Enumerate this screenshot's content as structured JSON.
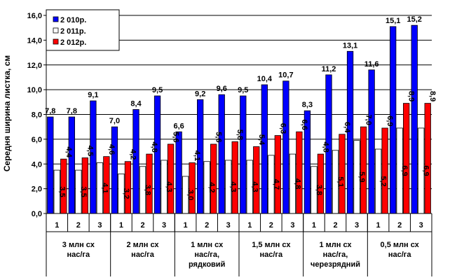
{
  "chart_data": {
    "type": "bar",
    "ylabel": "Середня ширина листка, см",
    "ylim": [
      0,
      16
    ],
    "yticks": [
      "0,0",
      "2,0",
      "4,0",
      "6,0",
      "8,0",
      "10,0",
      "12,0",
      "14,0",
      "16,0"
    ],
    "grid": true,
    "legend_position": "top-left",
    "groups": [
      {
        "label_lines": [
          "3 млн сх",
          "нас/га"
        ],
        "subcategories": [
          "1",
          "2",
          "3"
        ]
      },
      {
        "label_lines": [
          "2 млн сх",
          "нас/га"
        ],
        "subcategories": [
          "1",
          "2",
          "3"
        ]
      },
      {
        "label_lines": [
          "1 млн сх",
          "нас/га,",
          "рядковий"
        ],
        "subcategories": [
          "1",
          "2",
          "3"
        ]
      },
      {
        "label_lines": [
          "1,5 млн сх",
          "нас/га"
        ],
        "subcategories": [
          "1",
          "2",
          "3"
        ]
      },
      {
        "label_lines": [
          "1 млн сх",
          "нас/га,",
          "черезрядний"
        ],
        "subcategories": [
          "1",
          "2",
          "3"
        ]
      },
      {
        "label_lines": [
          "0,5 млн сх",
          "нас/га"
        ],
        "subcategories": [
          "1",
          "2",
          "3"
        ]
      }
    ],
    "series": [
      {
        "name": "2 010р.",
        "color": "#0000ff",
        "values": [
          7.8,
          7.8,
          9.1,
          7.0,
          8.4,
          9.5,
          6.6,
          9.2,
          9.6,
          9.5,
          10.4,
          10.7,
          8.3,
          11.2,
          13.1,
          11.6,
          15.1,
          15.2
        ],
        "labels": [
          "7,8",
          "7,8",
          "9,1",
          "7,0",
          "8,4",
          "9,5",
          "6,6",
          "9,2",
          "9,6",
          "9,5",
          "10,4",
          "10,7",
          "8,3",
          "11,2",
          "13,1",
          "11,6",
          "15,1",
          "15,2"
        ]
      },
      {
        "name": "2 011р.",
        "color": "#ffffff",
        "values": [
          3.5,
          3.5,
          4.1,
          3.2,
          3.8,
          4.3,
          3.0,
          4.2,
          4.3,
          4.3,
          4.7,
          4.8,
          3.8,
          5.1,
          5.9,
          5.2,
          6.9,
          6.9
        ],
        "labels": [
          "3,5",
          "3,5",
          "4,1",
          "3,2",
          "3,8",
          "4,3",
          "3,0",
          "4,2",
          "4,3",
          "4,3",
          "4,7",
          "4,8",
          "3,8",
          "5,1",
          "5,9",
          "5,2",
          "6,9",
          "6,9"
        ]
      },
      {
        "name": "2 012р.",
        "color": "#ff0000",
        "values": [
          4.4,
          4.5,
          4.6,
          4.2,
          4.8,
          5.6,
          4.1,
          5.6,
          5.8,
          5.4,
          6.3,
          6.6,
          4.8,
          6.4,
          7.0,
          6.9,
          8.9,
          8.9
        ],
        "labels": [
          "4,4",
          "4,5",
          "4,6",
          "4,2",
          "4,8",
          "5,6",
          "4,1",
          "5,6",
          "5,8",
          "5,4",
          "6,3",
          "6,6",
          "4,8",
          "6,4",
          "7,0",
          "6,9",
          "8,9",
          "8,9"
        ]
      }
    ]
  }
}
